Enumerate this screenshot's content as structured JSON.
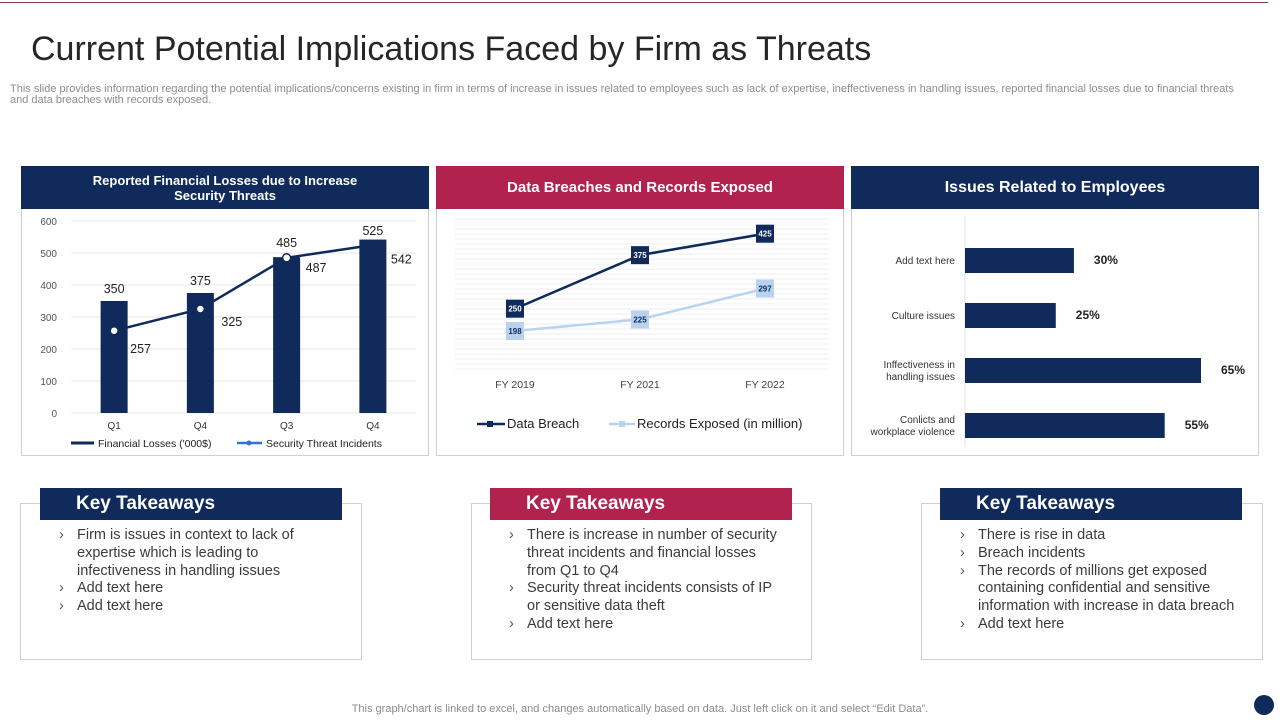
{
  "header": {
    "title": "Current Potential Implications Faced by Firm as Threats",
    "subtitle": "This slide provides information regarding the potential implications/concerns existing in firm in terms of increase in issues related to employees such as lack of expertise, ineffectiveness in handling issues, reported financial losses due to financial threats and data breaches with records exposed."
  },
  "panels": {
    "losses": {
      "title_line1": "Reported Financial Losses  due to Increase",
      "title_line2": "Security Threats"
    },
    "breaches": {
      "title": "Data Breaches and Records Exposed"
    },
    "employees": {
      "title": "Issues Related to Employees"
    }
  },
  "colors": {
    "navy": "#0f2a5b",
    "crimson": "#b2224e",
    "light_blue": "#b9d3ef",
    "line_blue": "#2e75d6"
  },
  "chart_data": [
    {
      "type": "bar",
      "categories": [
        "Q1",
        "Q4",
        "Q3",
        "Q4"
      ],
      "series": [
        {
          "name": "Financial Losses  ('000$)",
          "type": "bar",
          "values": [
            350,
            375,
            487,
            542
          ]
        },
        {
          "name": "Security Threat Incidents",
          "type": "line",
          "values": [
            257,
            325,
            485,
            525
          ]
        }
      ],
      "ylim": [
        0,
        600
      ],
      "yticks": [
        0,
        100,
        200,
        300,
        400,
        500,
        600
      ],
      "grid": true,
      "legend": "bottom"
    },
    {
      "type": "line",
      "categories": [
        "FY 2019",
        "FY 2021",
        "FY 2022"
      ],
      "series": [
        {
          "name": "Data Breach",
          "values": [
            250,
            375,
            425
          ]
        },
        {
          "name": "Records Exposed (in million)",
          "values": [
            198,
            225,
            297
          ]
        }
      ],
      "legend": "bottom"
    },
    {
      "type": "bar",
      "orientation": "horizontal",
      "categories": [
        [
          "Add text here"
        ],
        [
          "Culture issues"
        ],
        [
          "Inffectiveness in",
          "handling issues"
        ],
        [
          "Conlicts and",
          "workplace violence"
        ]
      ],
      "values": [
        30,
        25,
        65,
        55
      ],
      "value_suffix": "%"
    }
  ],
  "takeaways": [
    {
      "heading": "Key Takeaways",
      "items": [
        "Firm is issues in context to lack of expertise which is leading to infectiveness in handling issues",
        "Add text here",
        "Add text here"
      ]
    },
    {
      "heading": "Key Takeaways",
      "items": [
        "There is increase in number of security threat incidents and financial losses from Q1 to Q4",
        "Security threat incidents consists of IP or sensitive data theft",
        "Add text here"
      ]
    },
    {
      "heading": "Key Takeaways",
      "items": [
        "There is rise in data",
        " Breach incidents",
        "The records of millions get exposed containing confidential and sensitive information with increase in data breach",
        "Add text here"
      ]
    }
  ],
  "footer": {
    "note": "This graph/chart is linked to excel,  and changes automatically based on data. Just left click on it and select “Edit Data”."
  }
}
